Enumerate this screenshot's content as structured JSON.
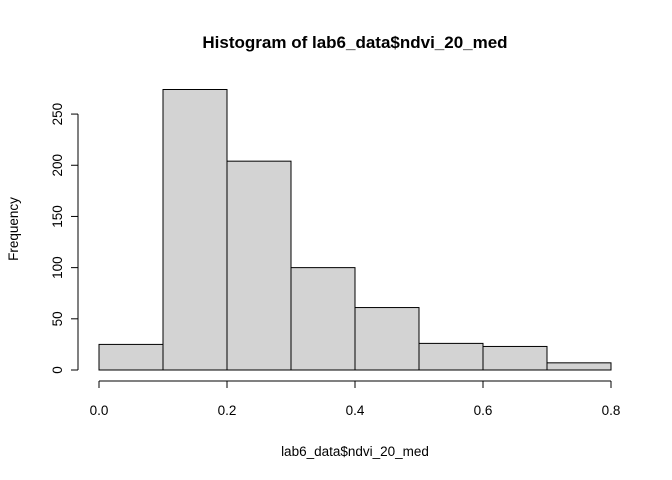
{
  "chart_data": {
    "type": "bar",
    "title": "Histogram of lab6_data$ndvi_20_med",
    "xlabel": "lab6_data$ndvi_20_med",
    "ylabel": "Frequency",
    "bins": [
      {
        "start": 0.0,
        "end": 0.1,
        "count": 25
      },
      {
        "start": 0.1,
        "end": 0.2,
        "count": 274
      },
      {
        "start": 0.2,
        "end": 0.3,
        "count": 204
      },
      {
        "start": 0.3,
        "end": 0.4,
        "count": 100
      },
      {
        "start": 0.4,
        "end": 0.5,
        "count": 61
      },
      {
        "start": 0.5,
        "end": 0.6,
        "count": 26
      },
      {
        "start": 0.6,
        "end": 0.7,
        "count": 23
      },
      {
        "start": 0.7,
        "end": 0.8,
        "count": 7
      }
    ],
    "xlim": [
      0,
      0.8
    ],
    "ylim": [
      0,
      274
    ],
    "x_ticks": [
      0.0,
      0.2,
      0.4,
      0.6,
      0.8
    ],
    "x_tick_labels": [
      "0.0",
      "0.2",
      "0.4",
      "0.6",
      "0.8"
    ],
    "y_ticks": [
      0,
      50,
      100,
      150,
      200,
      250
    ],
    "y_tick_labels": [
      "0",
      "50",
      "100",
      "150",
      "200",
      "250"
    ],
    "bar_color": "#d3d3d3",
    "edge_color": "#000000",
    "grid": false,
    "legend": "none"
  }
}
